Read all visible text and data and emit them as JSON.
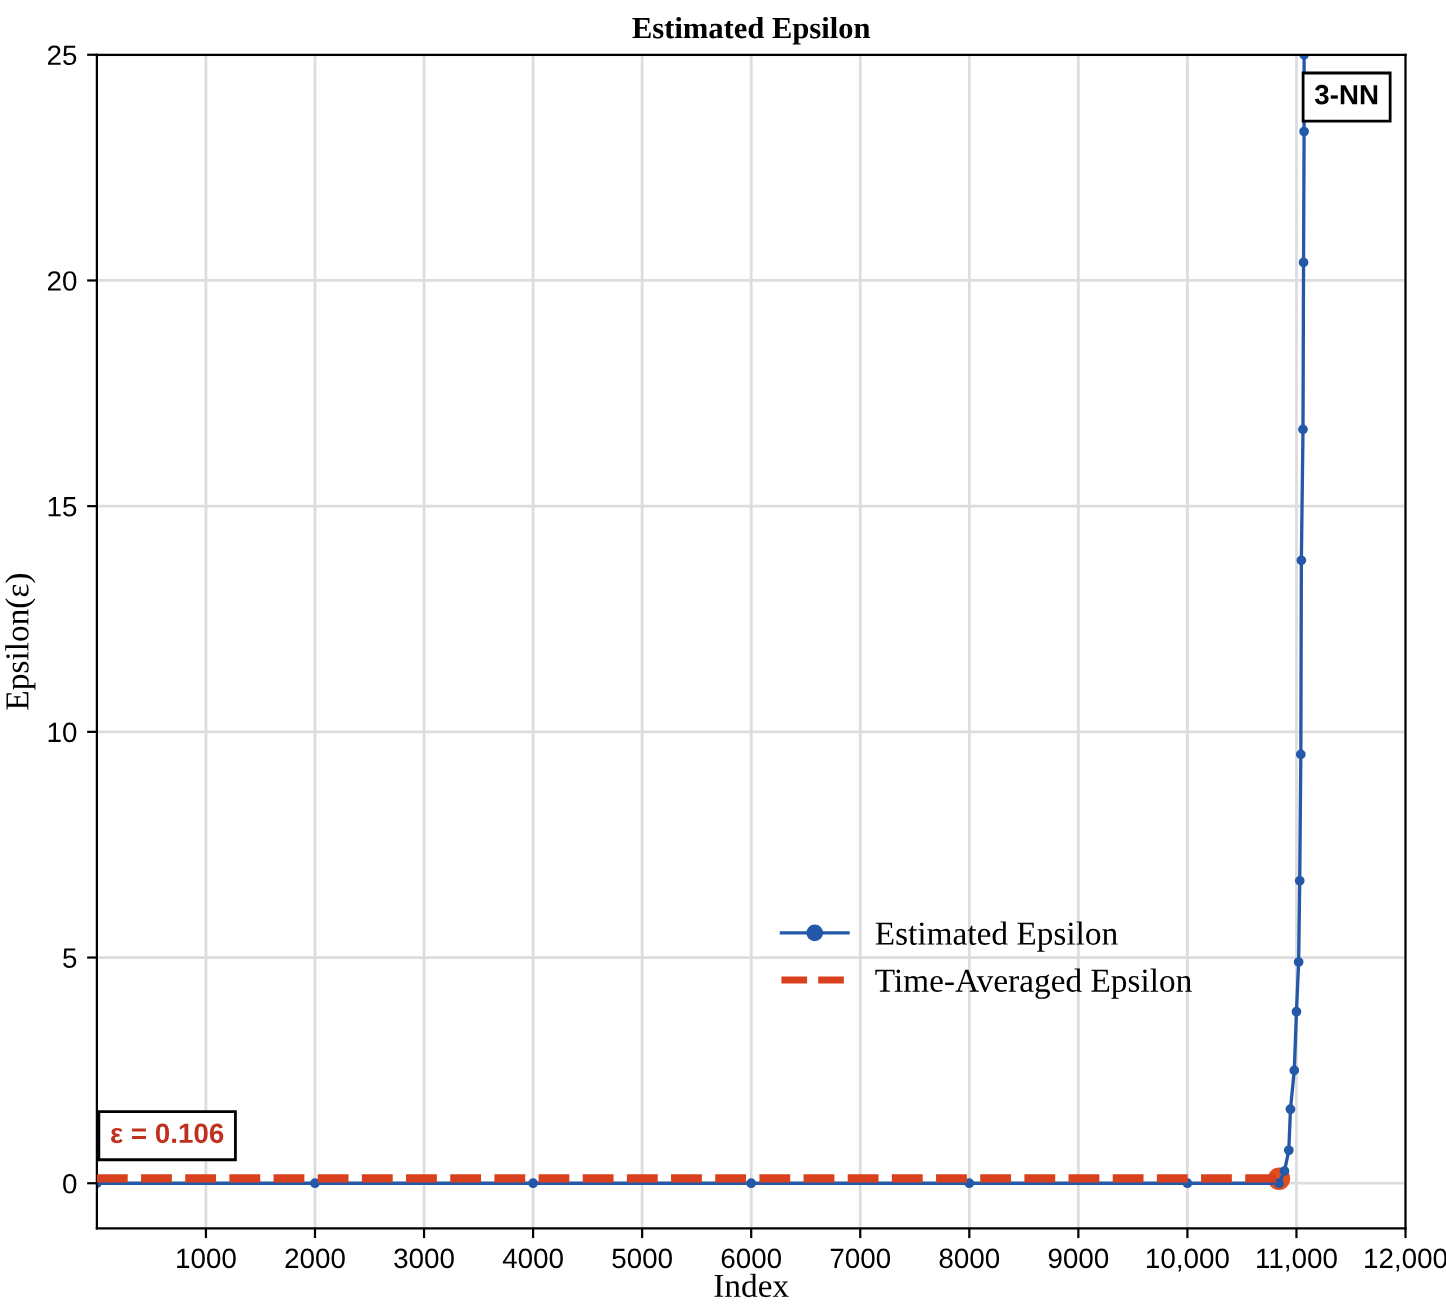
{
  "chart_data": {
    "type": "line",
    "title": "Estimated Epsilon",
    "xlabel": "Index",
    "ylabel": "Epsilon(ε)",
    "series": [
      {
        "name": "Estimated Epsilon",
        "color": "#2458a8",
        "marker": "circle",
        "line_style": "solid",
        "x": [
          0,
          2000,
          4000,
          6000,
          8000,
          10000,
          10840,
          10890,
          10930,
          10945,
          10980,
          11000,
          11020,
          11030,
          11040,
          11045,
          11060,
          11065,
          11070,
          11070
        ],
        "values": [
          0,
          0,
          0,
          0,
          0,
          0,
          0,
          0.27,
          0.73,
          1.64,
          2.5,
          3.8,
          4.9,
          6.7,
          9.5,
          13.8,
          16.7,
          20.4,
          23.3,
          25
        ]
      },
      {
        "name": "Time-Averaged Epsilon",
        "color": "#d9411e",
        "marker": "none",
        "line_style": "dashed",
        "x": [
          0,
          10840
        ],
        "values": [
          0.106,
          0.106
        ]
      },
      {
        "type": "scatter",
        "color": "#e0501e",
        "marker": "circle",
        "x": [
          10840
        ],
        "values": [
          0.1
        ]
      }
    ],
    "annotations": [
      "ε = 0.106",
      "3-NN"
    ],
    "xlim": [
      0,
      12000
    ],
    "xticks": [
      1000,
      2000,
      3000,
      4000,
      5000,
      6000,
      7000,
      8000,
      9000,
      {
        "value": 10000,
        "label": "10,000"
      },
      {
        "value": 11000,
        "label": "11,000"
      },
      {
        "value": 12000,
        "label": "12,000"
      }
    ],
    "ylim": [
      -1,
      25
    ],
    "yticks": [
      0,
      5,
      10,
      15,
      20,
      25
    ],
    "grid": true,
    "legend": "lower right"
  }
}
